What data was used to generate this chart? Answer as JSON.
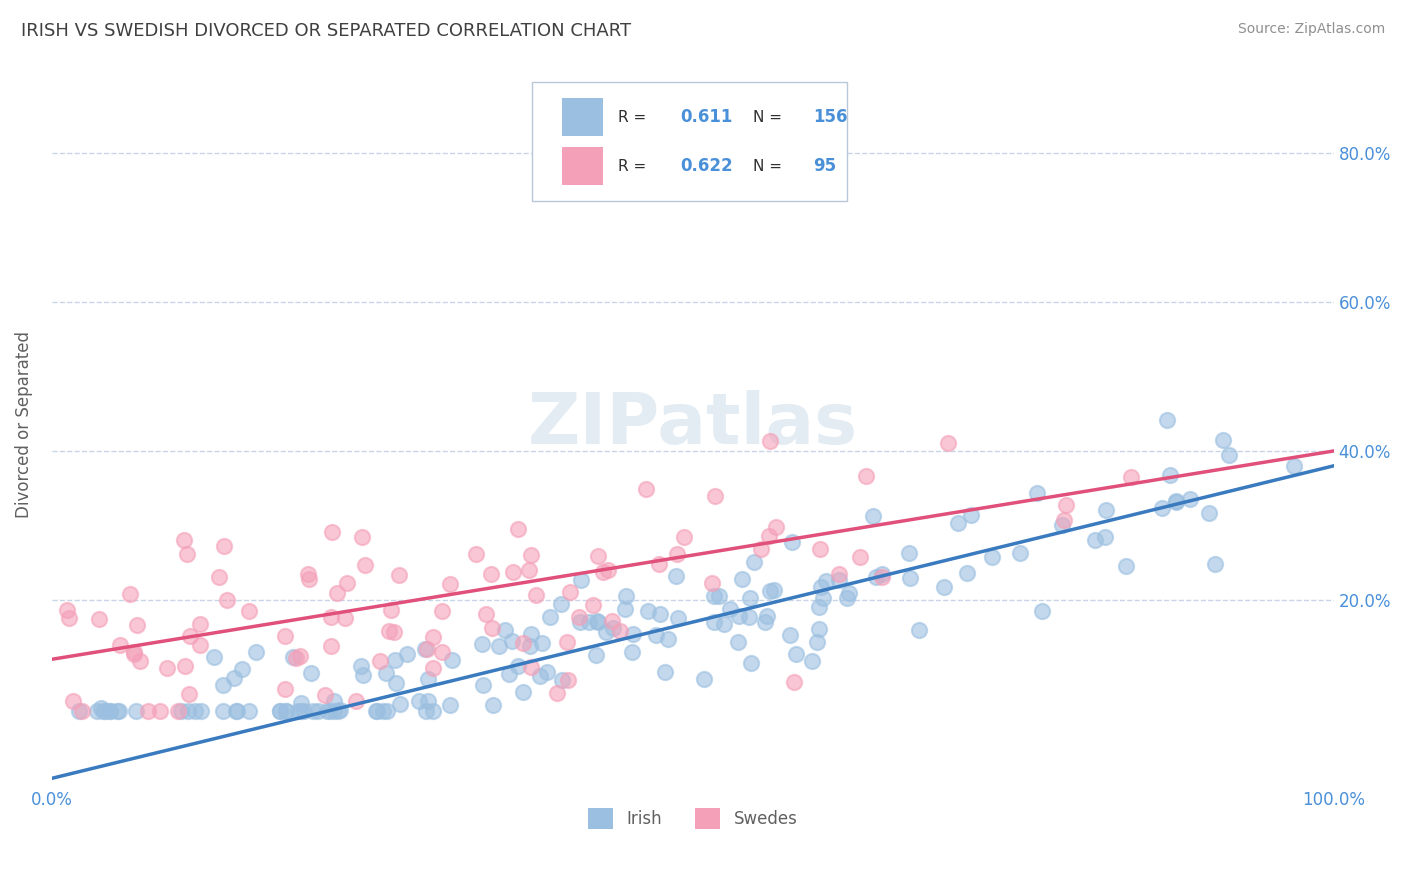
{
  "title": "IRISH VS SWEDISH DIVORCED OR SEPARATED CORRELATION CHART",
  "source_text": "Source: ZipAtlas.com",
  "ylabel": "Divorced or Separated",
  "xlim": [
    0.0,
    1.0
  ],
  "ylim": [
    -0.05,
    0.92
  ],
  "xticks": [
    0.0,
    0.1,
    0.2,
    0.3,
    0.4,
    0.5,
    0.6,
    0.7,
    0.8,
    0.9,
    1.0
  ],
  "xtick_labels": [
    "0.0%",
    "",
    "",
    "",
    "",
    "",
    "",
    "",
    "",
    "",
    "100.0%"
  ],
  "yticks": [
    0.0,
    0.2,
    0.4,
    0.6,
    0.8
  ],
  "ytick_labels": [
    "",
    "20.0%",
    "40.0%",
    "60.0%",
    "80.0%"
  ],
  "irish_color": "#9bbfe0",
  "swedes_color": "#f4a0b8",
  "irish_line_color": "#3a7abf",
  "swedes_line_color": "#e0507a",
  "irish_R": 0.611,
  "irish_N": 156,
  "swedes_R": 0.622,
  "swedes_N": 95,
  "background_color": "#ffffff",
  "watermark_text": "ZIPatlas",
  "legend_irish": "Irish",
  "legend_swedes": "Swedes",
  "title_color": "#404040",
  "axis_label_color": "#606060",
  "tick_label_color": "#4a90d9",
  "grid_color": "#c8d4e8",
  "irish_slope": 0.42,
  "irish_intercept": -0.04,
  "swedes_slope": 0.28,
  "swedes_intercept": 0.12
}
